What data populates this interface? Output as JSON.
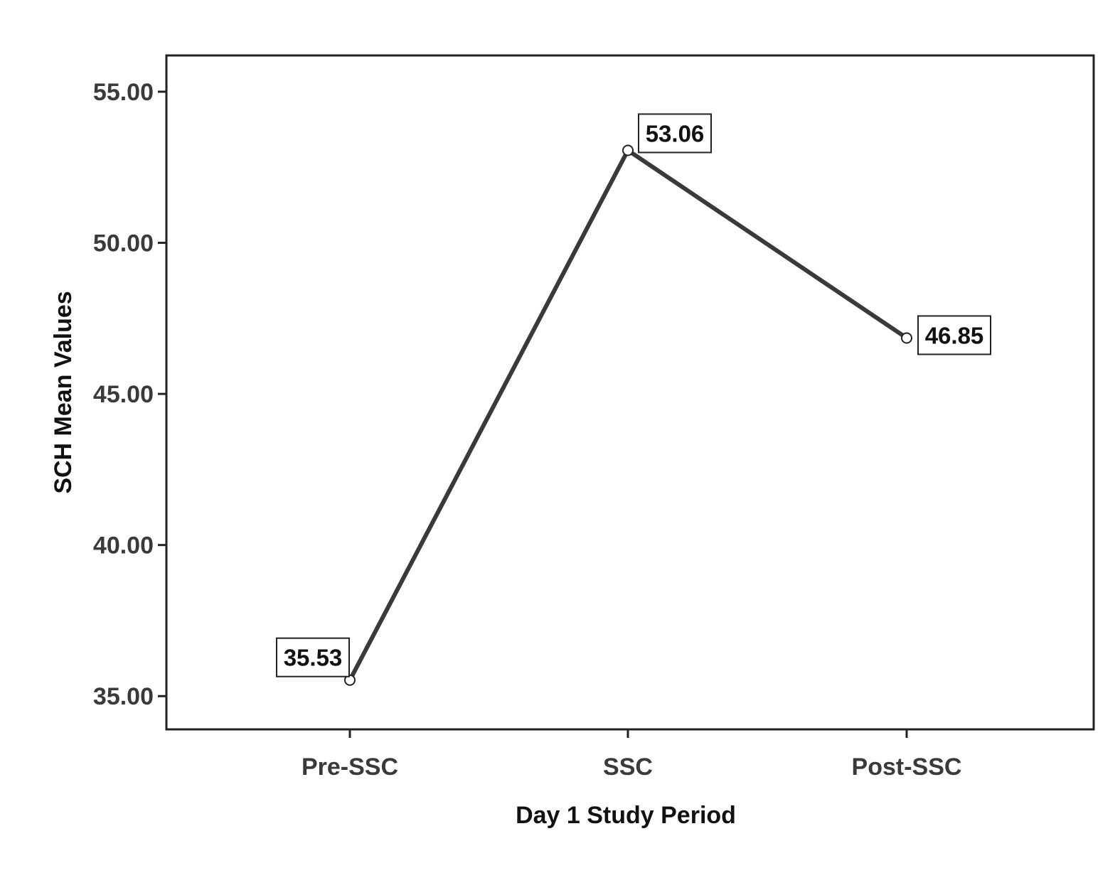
{
  "chart_data": {
    "type": "line",
    "categories": [
      "Pre-SSC",
      "SSC",
      "Post-SSC"
    ],
    "series": [
      {
        "values": [
          35.53,
          53.06,
          46.85
        ]
      }
    ],
    "data_labels": [
      "35.53",
      "53.06",
      "46.85"
    ],
    "xlabel": "Day 1 Study Period",
    "ylabel": "SCH Mean Values",
    "yticks": [
      35,
      40,
      45,
      50,
      55
    ],
    "ytick_labels": [
      "35.00",
      "40.00",
      "45.00",
      "50.00",
      "55.00"
    ],
    "ylim": [
      33.9,
      56.2
    ],
    "grid": false,
    "legend": "none",
    "line_color": "#3a3a3a",
    "frame_color": "#222222"
  }
}
